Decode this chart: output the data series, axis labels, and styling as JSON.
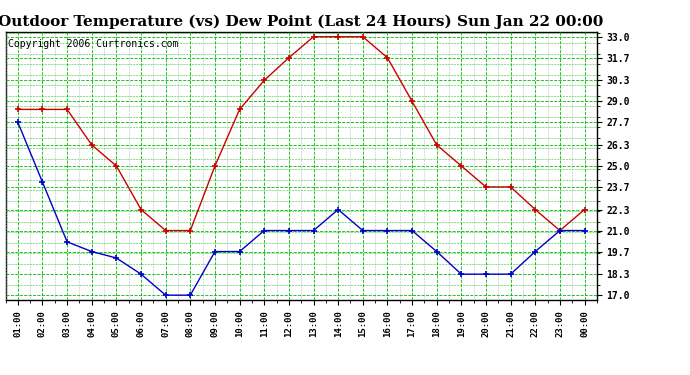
{
  "title": "Outdoor Temperature (vs) Dew Point (Last 24 Hours) Sun Jan 22 00:00",
  "copyright": "Copyright 2006 Curtronics.com",
  "x_labels": [
    "01:00",
    "02:00",
    "03:00",
    "04:00",
    "05:00",
    "06:00",
    "07:00",
    "08:00",
    "09:00",
    "10:00",
    "11:00",
    "12:00",
    "13:00",
    "14:00",
    "15:00",
    "16:00",
    "17:00",
    "18:00",
    "19:00",
    "20:00",
    "21:00",
    "22:00",
    "23:00",
    "00:00"
  ],
  "temp_values": [
    28.5,
    28.5,
    28.5,
    26.3,
    25.0,
    22.3,
    21.0,
    21.0,
    25.0,
    28.5,
    30.3,
    31.7,
    33.0,
    33.0,
    33.0,
    31.7,
    29.0,
    26.3,
    25.0,
    23.7,
    23.7,
    22.3,
    21.0,
    22.3
  ],
  "dew_values": [
    27.7,
    24.0,
    20.3,
    19.7,
    19.3,
    18.3,
    17.0,
    17.0,
    19.7,
    19.7,
    21.0,
    21.0,
    21.0,
    22.3,
    21.0,
    21.0,
    21.0,
    19.7,
    18.3,
    18.3,
    18.3,
    19.7,
    21.0,
    21.0
  ],
  "temp_color": "#cc0000",
  "dew_color": "#0000cc",
  "bg_color": "#ffffff",
  "plot_bg": "#ffffff",
  "grid_major_color": "#00bb00",
  "grid_minor_color": "#888888",
  "y_ticks": [
    17.0,
    18.3,
    19.7,
    21.0,
    22.3,
    23.7,
    25.0,
    26.3,
    27.7,
    29.0,
    30.3,
    31.7,
    33.0
  ],
  "ylim": [
    16.7,
    33.3
  ],
  "title_fontsize": 11,
  "copyright_fontsize": 7
}
